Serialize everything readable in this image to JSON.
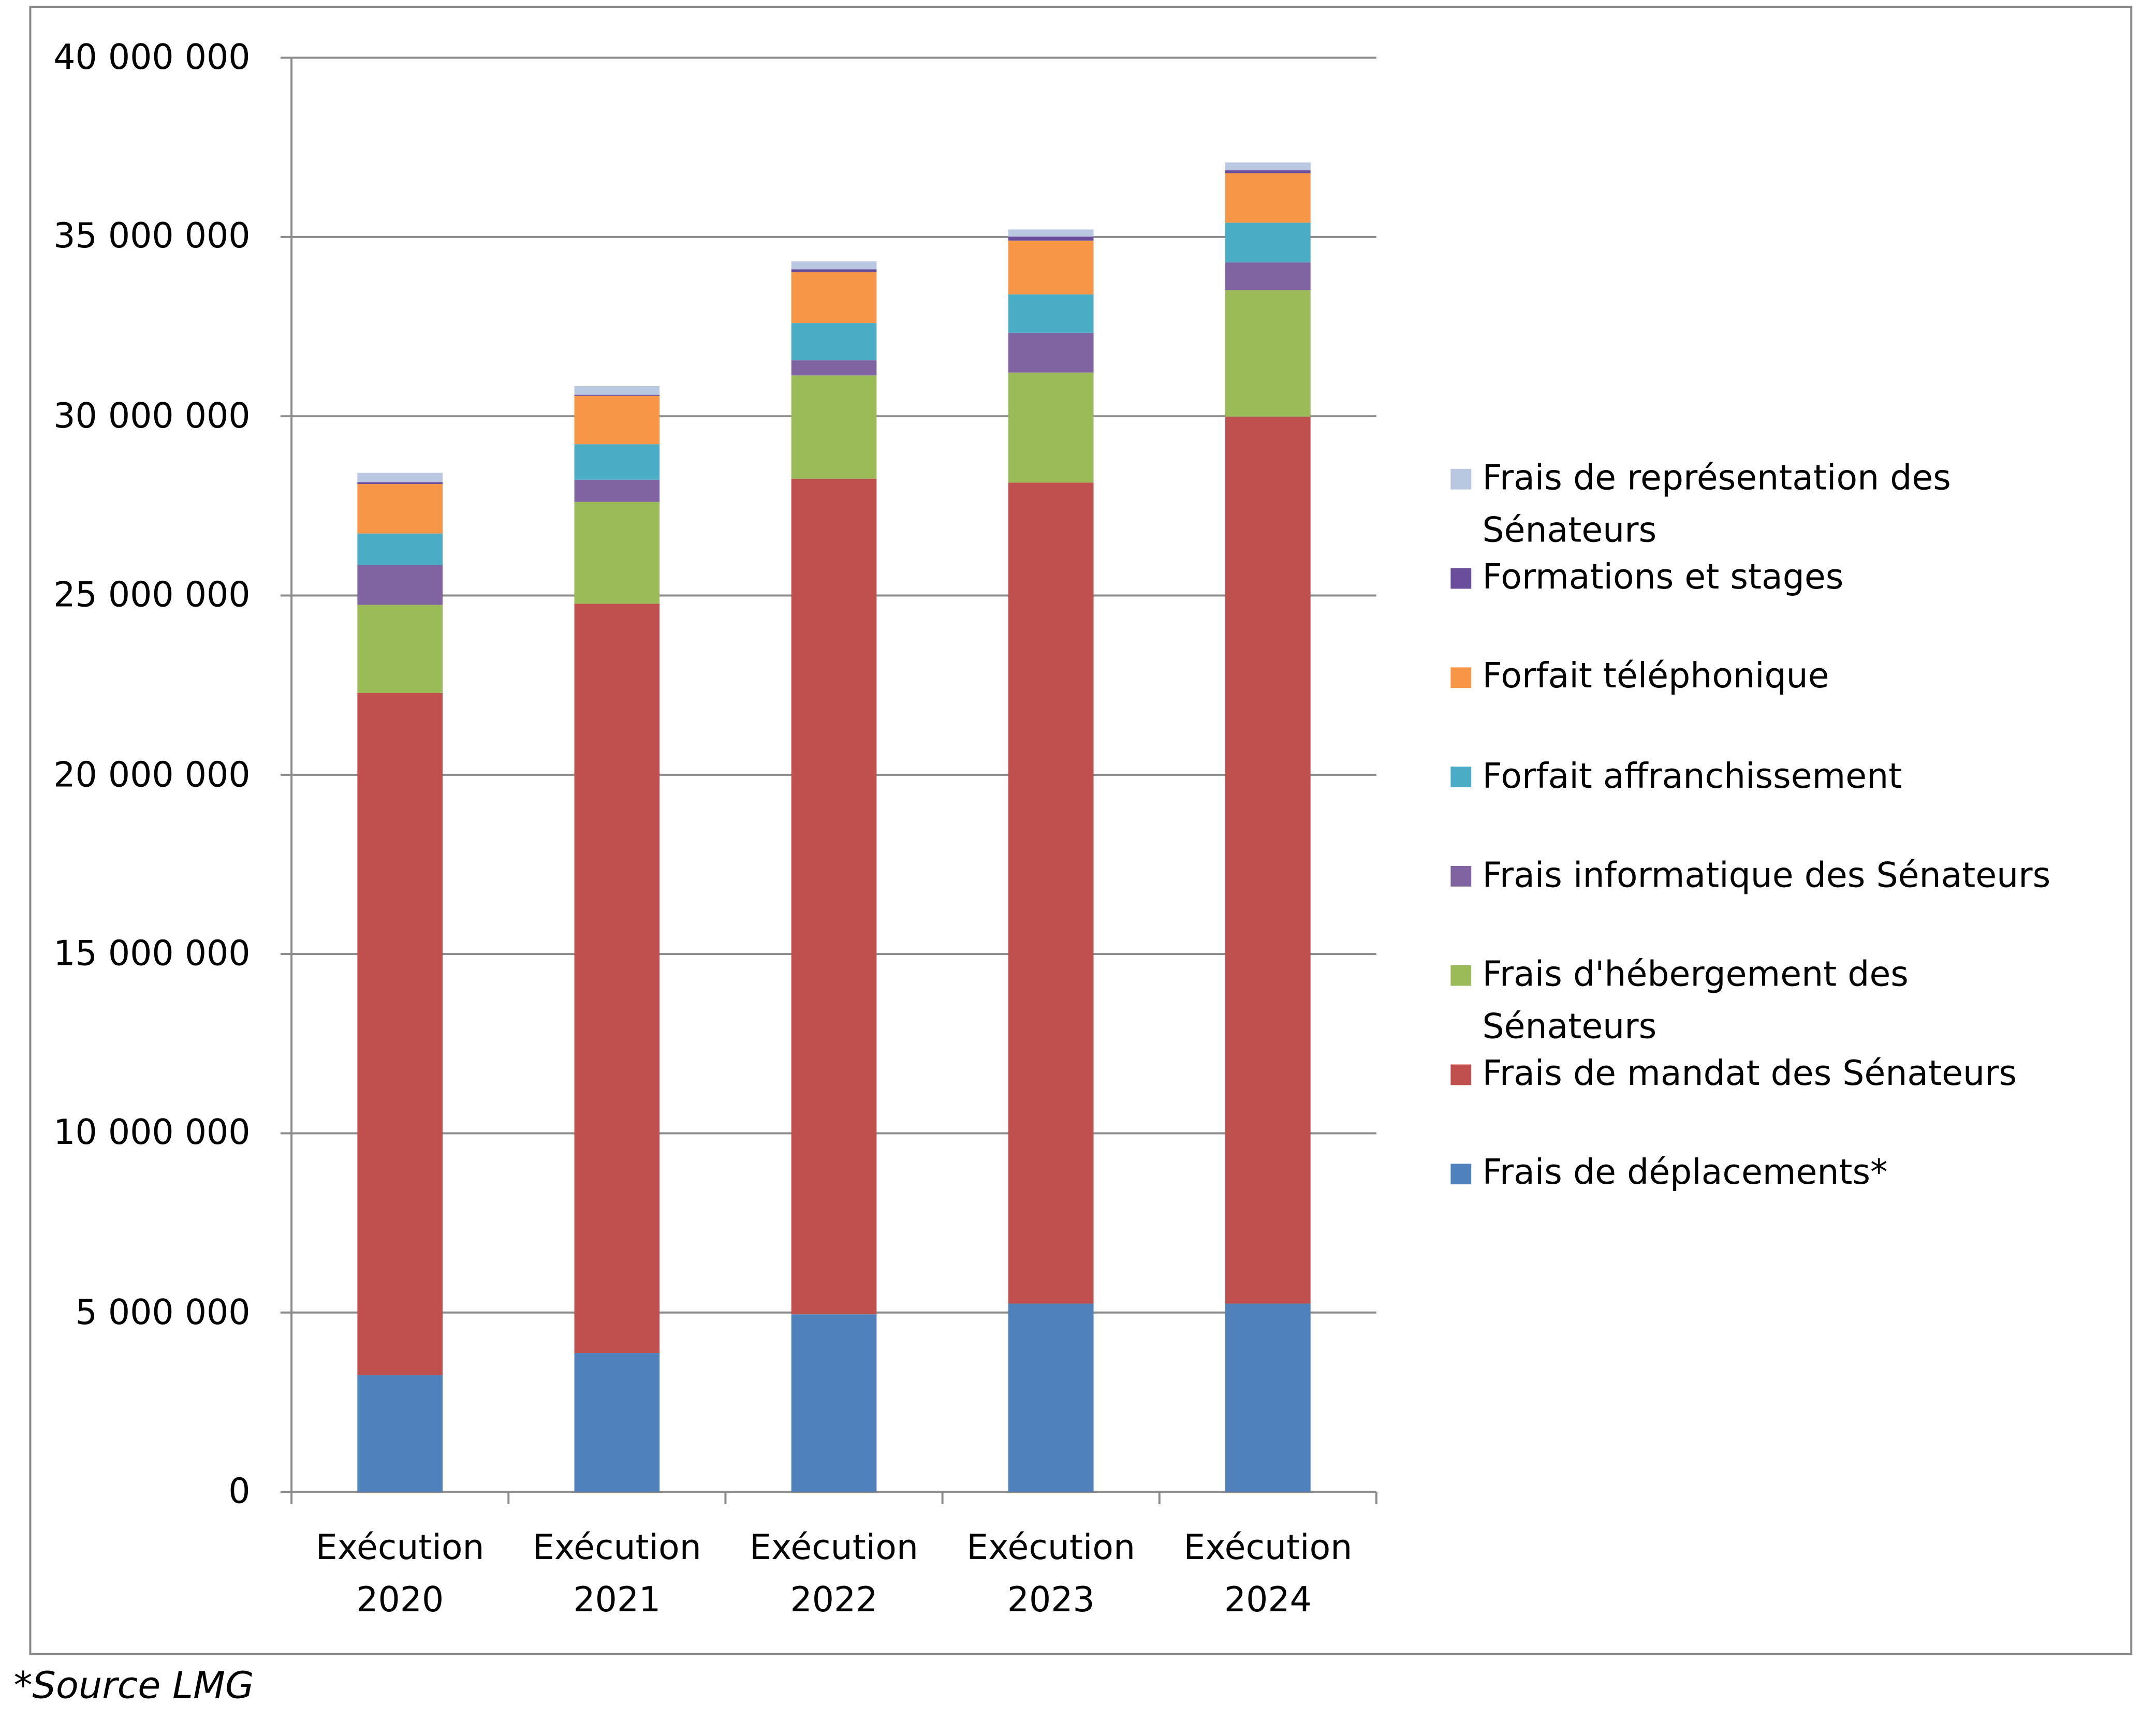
{
  "chart_data": {
    "type": "stacked_bar",
    "categories": [
      "Exécution 2020",
      "Exécution 2021",
      "Exécution 2022",
      "Exécution 2023",
      "Exécution 2024"
    ],
    "series": [
      {
        "name": "Frais de déplacements*",
        "color": "#4f81bd",
        "values": [
          3260000,
          3870000,
          4950000,
          5250000,
          5250000
        ]
      },
      {
        "name": "Frais de mandat des Sénateurs",
        "color": "#c0504d",
        "values": [
          19020000,
          20900000,
          23310000,
          22900000,
          24740000
        ]
      },
      {
        "name": "Frais d'hébergement des Sénateurs",
        "color": "#9bbb59",
        "values": [
          2460000,
          2840000,
          2880000,
          3070000,
          3530000
        ]
      },
      {
        "name": "Frais informatique des Sénateurs",
        "color": "#8064a2",
        "values": [
          1110000,
          620000,
          420000,
          1110000,
          770000
        ]
      },
      {
        "name": "Forfait affranchissement",
        "color": "#4bacc6",
        "values": [
          880000,
          990000,
          1040000,
          1070000,
          1110000
        ]
      },
      {
        "name": "Forfait téléphonique",
        "color": "#f79646",
        "values": [
          1380000,
          1350000,
          1420000,
          1500000,
          1380000
        ]
      },
      {
        "name": "Formations et stages",
        "color": "#6b4e9b",
        "values": [
          50000,
          30000,
          80000,
          110000,
          80000
        ]
      },
      {
        "name": "Frais de représentation des Sénateurs",
        "color": "#b9c7e0",
        "values": [
          260000,
          240000,
          220000,
          200000,
          220000
        ]
      }
    ],
    "ylim": [
      0,
      40000000
    ],
    "yticks": [
      0,
      {
        "value": 5000000,
        "label": "5 000 000"
      },
      {
        "value": 10000000,
        "label": "10 000 000"
      },
      {
        "value": 15000000,
        "label": "15 000 000"
      },
      {
        "value": 20000000,
        "label": "20 000 000"
      },
      {
        "value": 25000000,
        "label": "25 000 000"
      },
      {
        "value": 30000000,
        "label": "30 000 000"
      },
      {
        "value": 35000000,
        "label": "35 000 000"
      },
      {
        "value": 40000000,
        "label": "40 000 000"
      }
    ],
    "grid": true,
    "legend": "right",
    "footnote": "*Source LMG"
  }
}
